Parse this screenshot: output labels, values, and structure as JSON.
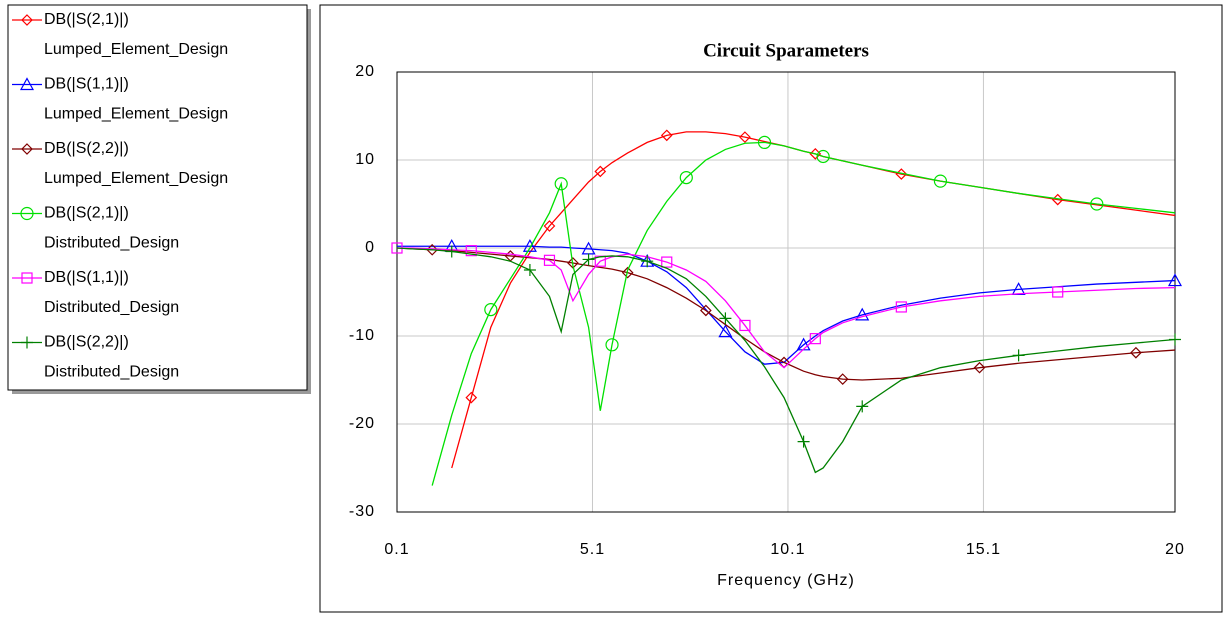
{
  "chart_data": {
    "type": "line",
    "title": "Circuit Sparameters",
    "xlabel": "Frequency (GHz)",
    "x": [
      0.1,
      0.5,
      1,
      1.5,
      2,
      2.5,
      3,
      3.5,
      4,
      4.3,
      4.6,
      5,
      5.3,
      5.6,
      6,
      6.5,
      7,
      7.5,
      8,
      8.5,
      9,
      9.5,
      10,
      10.5,
      10.8,
      11,
      11.5,
      12,
      13,
      14,
      15,
      16,
      17,
      18,
      19,
      20
    ],
    "xlim": [
      0.1,
      20
    ],
    "xticks": [
      0.1,
      5.1,
      10.1,
      15.1,
      20
    ],
    "ylim": [
      -30,
      20
    ],
    "yticks": [
      20,
      10,
      0,
      -10,
      -20,
      -30
    ],
    "grid": true,
    "legend": "left",
    "series": [
      {
        "name": [
          "DB(|S(2,1)|)",
          "Lumped_Element_Design"
        ],
        "color": "#ff0000",
        "marker": "diamond",
        "values": [
          null,
          null,
          null,
          -25,
          -17,
          -9,
          -4,
          -0.5,
          2.5,
          4,
          5.5,
          7.5,
          8.7,
          9.7,
          10.8,
          12,
          12.8,
          13.2,
          13.2,
          13,
          12.6,
          12.1,
          11.6,
          11,
          10.7,
          10.4,
          9.9,
          9.4,
          8.4,
          7.6,
          6.9,
          6.2,
          5.5,
          4.9,
          4.3,
          3.7
        ]
      },
      {
        "name": [
          "DB(|S(1,1)|)",
          "Lumped_Element_Design"
        ],
        "color": "#0000ff",
        "marker": "triangle",
        "values": [
          0.2,
          0.2,
          0.2,
          0.2,
          0.2,
          0.2,
          0.2,
          0.2,
          0.1,
          0.1,
          0,
          -0.1,
          -0.2,
          -0.3,
          -0.6,
          -1.5,
          -2.7,
          -4.5,
          -7,
          -9.5,
          -11.8,
          -13.2,
          -13,
          -11,
          -10,
          -9.4,
          -8.3,
          -7.6,
          -6.5,
          -5.7,
          -5.1,
          -4.7,
          -4.4,
          -4.1,
          -3.9,
          -3.7
        ]
      },
      {
        "name": [
          "DB(|S(2,2)|)",
          "Lumped_Element_Design"
        ],
        "color": "#800000",
        "marker": "diamond",
        "values": [
          0,
          -0.1,
          -0.2,
          -0.3,
          -0.5,
          -0.7,
          -0.9,
          -1.1,
          -1.3,
          -1.5,
          -1.7,
          -2,
          -2.2,
          -2.4,
          -2.8,
          -3.5,
          -4.5,
          -5.7,
          -7.1,
          -8.7,
          -10.3,
          -11.8,
          -13,
          -14,
          -14.4,
          -14.6,
          -14.9,
          -15,
          -14.8,
          -14.2,
          -13.6,
          -13.1,
          -12.7,
          -12.3,
          -11.9,
          -11.6
        ]
      },
      {
        "name": [
          "DB(|S(2,1)|)",
          "Distributed_Design"
        ],
        "color": "#00e000",
        "marker": "circle",
        "values": [
          null,
          null,
          -27,
          -19,
          -12,
          -7,
          -3.5,
          0,
          4,
          7.3,
          -2,
          -9,
          -18.5,
          -11,
          -2.5,
          2,
          5.3,
          8,
          10,
          11.2,
          11.9,
          12,
          11.6,
          11,
          10.7,
          10.4,
          9.9,
          9.4,
          8.5,
          7.6,
          6.9,
          6.2,
          5.6,
          5,
          4.5,
          4
        ]
      },
      {
        "name": [
          "DB(|S(1,1)|)",
          "Distributed_Design"
        ],
        "color": "#ff00ff",
        "marker": "square",
        "values": [
          0,
          0,
          -0.1,
          -0.2,
          -0.3,
          -0.5,
          -0.7,
          -1,
          -1.4,
          -2.5,
          -6,
          -3,
          -1.5,
          -1,
          -0.7,
          -1,
          -1.6,
          -2.5,
          -3.8,
          -6,
          -8.8,
          -11.8,
          -13.6,
          -11.5,
          -10.3,
          -9.6,
          -8.5,
          -7.8,
          -6.7,
          -6,
          -5.5,
          -5.2,
          -5,
          -4.8,
          -4.6,
          -4.5
        ]
      },
      {
        "name": [
          "DB(|S(2,2)|)",
          "Distributed_Design"
        ],
        "color": "#008000",
        "marker": "plus",
        "values": [
          0,
          -0.1,
          -0.2,
          -0.4,
          -0.7,
          -1,
          -1.5,
          -2.5,
          -5.5,
          -9.5,
          -3,
          -1.3,
          -1,
          -0.9,
          -1,
          -1.5,
          -2.3,
          -3.5,
          -5.5,
          -8,
          -10.5,
          -13.5,
          -17,
          -22,
          -25.5,
          -25,
          -22,
          -18,
          -15,
          -13.6,
          -12.8,
          -12.2,
          -11.7,
          -11.2,
          -10.8,
          -10.4
        ]
      }
    ]
  }
}
